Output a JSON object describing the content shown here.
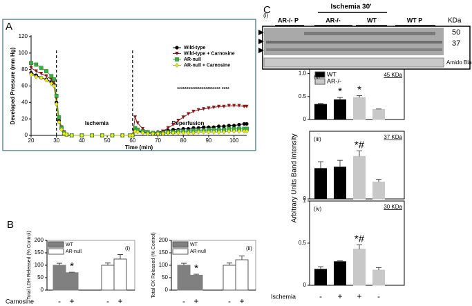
{
  "panel_labels": [
    "A",
    "B",
    "C"
  ],
  "blot": {
    "panel": "(i)",
    "lanes": [
      "AR-/- P",
      "AR-/-",
      "WT",
      "WT P"
    ],
    "group": "Ischemia 30'",
    "unit": "KDa",
    "markers": [
      "50",
      "37"
    ],
    "loading": "Amido Black"
  },
  "shared_ylabel": "Arbitrary Units Band intensity",
  "chart_data": [
    {
      "type": "line",
      "xlabel": "Time (min)",
      "ylabel": "Developed Pressure (mm Hg)",
      "x": [
        20,
        22,
        24,
        26,
        28,
        29,
        30,
        31,
        32,
        33,
        34,
        36,
        40,
        44,
        48,
        52,
        56,
        59,
        60,
        61,
        62,
        64,
        66,
        68,
        70,
        72,
        74,
        76,
        78,
        80,
        82,
        84,
        86,
        88,
        90,
        92,
        94,
        96,
        98,
        100,
        102,
        104,
        105
      ],
      "series": [
        {
          "name": "Wild-type",
          "color": "#000000",
          "marker": "circle",
          "values": [
            76,
            73,
            70,
            68,
            65,
            62,
            40,
            18,
            8,
            3,
            1,
            0,
            0,
            0,
            0,
            0,
            0,
            0,
            0,
            6,
            5,
            4,
            3,
            3,
            4,
            5,
            6,
            7,
            7,
            8,
            8,
            9,
            9,
            10,
            10,
            10,
            11,
            11,
            12,
            12,
            13,
            14,
            14
          ]
        },
        {
          "name": "Wild-type + Carnosine",
          "color": "#8b1a1a",
          "marker": "triangle",
          "values": [
            82,
            78,
            75,
            72,
            68,
            64,
            45,
            20,
            10,
            4,
            1,
            0,
            0,
            0,
            0,
            0,
            0,
            0,
            0,
            22,
            15,
            8,
            4,
            3,
            3,
            5,
            9,
            13,
            18,
            22,
            26,
            29,
            31,
            32,
            33,
            34,
            35,
            35,
            36,
            36,
            36,
            35,
            35
          ]
        },
        {
          "name": "AR-null",
          "color": "#3cb043",
          "marker": "square",
          "values": [
            88,
            86,
            82,
            78,
            72,
            68,
            48,
            22,
            9,
            3,
            1,
            0,
            0,
            0,
            0,
            0,
            0,
            0,
            0,
            9,
            7,
            5,
            4,
            3,
            3,
            3,
            4,
            4,
            5,
            5,
            5,
            6,
            6,
            6,
            7,
            7,
            7,
            7,
            8,
            8,
            8,
            8,
            8
          ]
        },
        {
          "name": "AR-null + Carnosine",
          "color": "#f0f000",
          "marker": "diamond",
          "values": [
            74,
            71,
            70,
            67,
            63,
            60,
            38,
            16,
            7,
            2,
            1,
            0,
            0,
            0,
            0,
            0,
            0,
            0,
            0,
            5,
            4,
            3,
            2,
            2,
            2,
            2,
            3,
            3,
            3,
            3,
            3,
            3,
            4,
            4,
            4,
            4,
            4,
            4,
            5,
            5,
            5,
            5,
            5
          ]
        }
      ],
      "xlim": [
        20,
        105
      ],
      "ylim": [
        0,
        120
      ],
      "xticks": [
        20,
        30,
        40,
        50,
        60,
        70,
        80,
        90,
        100
      ],
      "yticks": [
        0,
        20,
        40,
        60,
        80,
        100,
        120
      ],
      "vlines": [
        30,
        60
      ],
      "annotations": [
        "Ischemia",
        "Reperfusion",
        "*********************** ****"
      ],
      "legend": "upper right"
    },
    {
      "type": "bar",
      "panel": "(i)",
      "ylabel": "Total LDH Released (% Control)",
      "xlabel": "Carnosine",
      "categories": [
        "-",
        "+",
        "-",
        "+"
      ],
      "series": [
        {
          "name": "WT",
          "color": "#808080",
          "values": [
            100,
            70,
            null,
            null
          ],
          "errors": [
            8,
            2,
            null,
            null
          ],
          "marks": [
            null,
            "*",
            null,
            null
          ]
        },
        {
          "name": "AR-null",
          "color": "#ffffff",
          "values": [
            null,
            null,
            100,
            125
          ],
          "errors": [
            null,
            null,
            9,
            18
          ]
        }
      ],
      "ylim": [
        0,
        200
      ],
      "yticks": [
        0,
        50,
        100,
        150,
        200
      ],
      "legend": "upper left"
    },
    {
      "type": "bar",
      "panel": "(ii)",
      "ylabel": "Total CK Released (% Control)",
      "categories": [
        "-",
        "+",
        "-",
        "+"
      ],
      "series": [
        {
          "name": "WT",
          "color": "#808080",
          "values": [
            100,
            60,
            null,
            null
          ],
          "errors": [
            8,
            4,
            null,
            null
          ],
          "marks": [
            null,
            "*",
            null,
            null
          ]
        },
        {
          "name": "AR-null",
          "color": "#ffffff",
          "values": [
            null,
            null,
            100,
            122
          ],
          "errors": [
            null,
            null,
            9,
            15
          ]
        }
      ],
      "ylim": [
        0,
        200
      ],
      "yticks": [
        0,
        50,
        100,
        150,
        200
      ],
      "legend": "upper left"
    },
    {
      "type": "bar",
      "panel": "(ii)",
      "band": "45 KDa",
      "categories": [
        null,
        null,
        null,
        null
      ],
      "series": [
        {
          "name": "WT",
          "color": "#000000",
          "values": [
            0.33,
            0.43,
            null,
            null
          ],
          "errors": [
            0.02,
            0.05,
            null,
            null
          ],
          "marks": [
            null,
            "*",
            null,
            null
          ]
        },
        {
          "name": "AR-/-",
          "color": "#c8c8c8",
          "values": [
            null,
            null,
            0.48,
            0.22
          ],
          "errors": [
            null,
            null,
            0.04,
            0.01
          ],
          "marks": [
            null,
            null,
            "*",
            null
          ]
        }
      ],
      "ylim": [
        0,
        1.1
      ],
      "yticks": [
        0,
        0.5,
        {
          "value": 1,
          "label": "1.0"
        }
      ],
      "legend": "upper left"
    },
    {
      "type": "bar",
      "panel": "(iii)",
      "band": "37 KDa",
      "categories": [
        null,
        null,
        null,
        null
      ],
      "series": [
        {
          "color": "#000000",
          "values": [
            0.45,
            0.47,
            null,
            null
          ],
          "errors": [
            0.1,
            0.1,
            null,
            null
          ]
        },
        {
          "color": "#c8c8c8",
          "values": [
            null,
            null,
            0.63,
            0.25
          ],
          "errors": [
            null,
            null,
            0.08,
            0.04
          ],
          "marks": [
            null,
            null,
            "*#",
            null
          ]
        }
      ],
      "ylim": [
        0,
        1
      ],
      "yticks": [
        0
      ]
    },
    {
      "type": "bar",
      "panel": "(iv)",
      "band": "30 KDa",
      "xlabel": "Ischemia",
      "categories": [
        "-",
        "+",
        "+",
        "-"
      ],
      "series": [
        {
          "color": "#000000",
          "values": [
            0.19,
            0.28,
            null,
            null
          ],
          "errors": [
            0.03,
            0.01,
            null,
            null
          ]
        },
        {
          "color": "#c8c8c8",
          "values": [
            null,
            null,
            0.43,
            0.18
          ],
          "errors": [
            null,
            null,
            0.05,
            0.03
          ],
          "marks": [
            null,
            null,
            "*#",
            null
          ]
        }
      ],
      "ylim": [
        0,
        1
      ],
      "yticks": [
        0,
        0.5,
        1
      ]
    }
  ]
}
